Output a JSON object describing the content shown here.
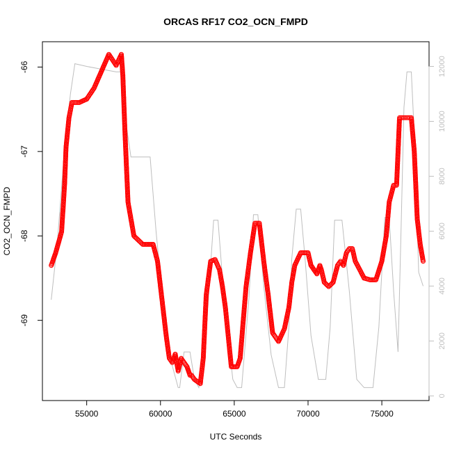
{
  "chart_data": {
    "type": "scatter",
    "title": "ORCAS RF17 CO2_OCN_FMPD",
    "xlabel": "UTC Seconds",
    "ylabel": "CO2_OCN_FMPD",
    "xlim": [
      52000,
      78200
    ],
    "ylim": [
      -69.95,
      -65.7
    ],
    "y2lim": [
      -170,
      12900
    ],
    "x_ticks": [
      55000,
      60000,
      65000,
      70000,
      75000
    ],
    "y_ticks": [
      -66,
      -67,
      -68,
      -69
    ],
    "y2_ticks": [
      0,
      2000,
      4000,
      6000,
      8000,
      10000,
      12000
    ],
    "grid": false,
    "colors": {
      "points": "#ff0000",
      "altitude_line": "#bebebe",
      "right_axis": "#bfbfbf"
    },
    "series": [
      {
        "style": "points",
        "x": [
          52600,
          52900,
          53300,
          53500,
          53600,
          53800,
          54000,
          54500,
          55000,
          55500,
          56000,
          56500,
          57000,
          57350,
          57450,
          57600,
          57800,
          58200,
          58800,
          59500,
          59800,
          60100,
          60400,
          60600,
          60800,
          61000,
          61200,
          61400,
          61600,
          61800,
          62000,
          62100,
          62300,
          62700,
          62900,
          63100,
          63400,
          63700,
          64000,
          64200,
          64400,
          64600,
          64800,
          65200,
          65400,
          65800,
          66100,
          66400,
          66700,
          67000,
          67300,
          67600,
          67800,
          68000,
          68400,
          68700,
          68900,
          69100,
          69500,
          70000,
          70200,
          70600,
          70800,
          70900,
          71100,
          71400,
          71700,
          72000,
          72200,
          72400,
          72600,
          72800,
          73000,
          73200,
          73500,
          73800,
          74200,
          74600,
          75000,
          75300,
          75500,
          75800,
          76000,
          76200,
          76500,
          76700,
          77000,
          77200,
          77400,
          77600,
          77800
        ],
        "y": [
          -68.35,
          -68.2,
          -67.95,
          -67.4,
          -66.95,
          -66.6,
          -66.42,
          -66.42,
          -66.38,
          -66.25,
          -66.05,
          -65.85,
          -65.98,
          -65.85,
          -66.1,
          -66.8,
          -67.6,
          -68.0,
          -68.1,
          -68.1,
          -68.3,
          -68.75,
          -69.2,
          -69.45,
          -69.5,
          -69.4,
          -69.6,
          -69.45,
          -69.5,
          -69.55,
          -69.65,
          -69.65,
          -69.7,
          -69.75,
          -69.45,
          -68.7,
          -68.3,
          -68.28,
          -68.4,
          -68.6,
          -68.85,
          -69.2,
          -69.55,
          -69.55,
          -69.45,
          -68.6,
          -68.2,
          -67.85,
          -67.85,
          -68.3,
          -68.7,
          -69.15,
          -69.2,
          -69.25,
          -69.1,
          -68.85,
          -68.55,
          -68.35,
          -68.2,
          -68.2,
          -68.35,
          -68.45,
          -68.35,
          -68.4,
          -68.55,
          -68.6,
          -68.55,
          -68.35,
          -68.3,
          -68.35,
          -68.2,
          -68.15,
          -68.15,
          -68.3,
          -68.4,
          -68.5,
          -68.52,
          -68.52,
          -68.3,
          -68.0,
          -67.6,
          -67.4,
          -67.4,
          -66.6,
          -66.6,
          -66.6,
          -66.6,
          -67.0,
          -67.8,
          -68.1,
          -68.3
        ]
      },
      {
        "style": "line",
        "axis": "right",
        "x": [
          52600,
          53000,
          53500,
          53900,
          54200,
          55000,
          56000,
          57000,
          57450,
          57700,
          58000,
          58300,
          59300,
          59700,
          60200,
          60800,
          61200,
          61300,
          61600,
          62000,
          62300,
          62600,
          63000,
          63600,
          63900,
          64300,
          64900,
          65200,
          65500,
          66000,
          66300,
          66600,
          67000,
          67500,
          68000,
          68400,
          68700,
          68900,
          69200,
          69500,
          69800,
          70200,
          70700,
          71200,
          71500,
          71800,
          72300,
          72800,
          73300,
          73800,
          74400,
          74800,
          75200,
          75500,
          75800,
          76100,
          76300,
          76500,
          76700,
          77000,
          77200,
          77500,
          77800
        ],
        "y": [
          3500,
          5500,
          9000,
          11000,
          12100,
          12000,
          11900,
          11800,
          11800,
          9800,
          8700,
          8700,
          8700,
          6000,
          3200,
          1100,
          300,
          300,
          1600,
          1600,
          600,
          300,
          1500,
          6400,
          6400,
          3600,
          600,
          300,
          300,
          3600,
          6600,
          6600,
          4000,
          1500,
          300,
          300,
          2500,
          5000,
          6800,
          6800,
          5000,
          2200,
          600,
          600,
          2500,
          6400,
          6400,
          3800,
          600,
          300,
          300,
          2500,
          6500,
          6500,
          3800,
          1600,
          6000,
          10500,
          11800,
          11800,
          9500,
          4500,
          4000
        ]
      }
    ]
  }
}
